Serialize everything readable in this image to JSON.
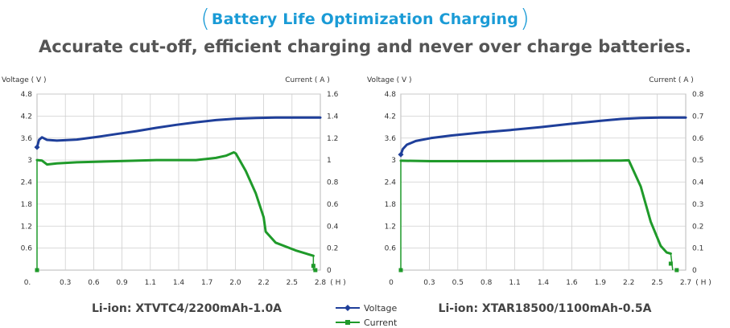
{
  "header": {
    "title": "Battery Life Optimization Charging",
    "subtitle": "Accurate cut-off, efficient charging and never over charge batteries."
  },
  "legend": {
    "voltage_label": "Voltage",
    "current_label": "Current",
    "voltage_color": "#1f3f9a",
    "current_color": "#1f9a2a"
  },
  "chart_data": [
    {
      "type": "line",
      "caption": "Li-ion: XTVTC4/2200mAh-1.0A",
      "ylabel": "Voltage ( V )",
      "y2label": "Current ( A )",
      "xunit": "( H )",
      "xlim": [
        0,
        2.85
      ],
      "ylim": [
        0,
        4.8
      ],
      "y2lim": [
        0,
        1.6
      ],
      "xticks": [
        "0.",
        "0.3",
        "0.6",
        "0.9",
        "1.1",
        "1.4",
        "1.7",
        "2.0",
        "2.2",
        "2.5",
        "2.8"
      ],
      "yticks": [
        "0.6",
        "1.2",
        "1.8",
        "2.4",
        "3",
        "3.6",
        "4.2",
        "4.8"
      ],
      "y2ticks": [
        "0",
        "0.2",
        "0.4",
        "0.6",
        "0.8",
        "1",
        "1.2",
        "1.4",
        "1.6"
      ],
      "grid": true,
      "series": [
        {
          "name": "Voltage",
          "axis": "left",
          "x": [
            0.0,
            0.02,
            0.05,
            0.1,
            0.2,
            0.4,
            0.6,
            0.8,
            1.0,
            1.2,
            1.4,
            1.6,
            1.8,
            2.0,
            2.2,
            2.4,
            2.6,
            2.85
          ],
          "y": [
            3.35,
            3.55,
            3.62,
            3.55,
            3.53,
            3.56,
            3.63,
            3.71,
            3.79,
            3.88,
            3.96,
            4.03,
            4.09,
            4.13,
            4.15,
            4.16,
            4.16,
            4.16
          ]
        },
        {
          "name": "Current",
          "axis": "right",
          "x": [
            0.0,
            0.05,
            0.1,
            0.2,
            0.4,
            0.8,
            1.2,
            1.6,
            1.8,
            1.9,
            1.98,
            2.0,
            2.1,
            2.2,
            2.28,
            2.3,
            2.4,
            2.6,
            2.78
          ],
          "y": [
            1.0,
            0.995,
            0.96,
            0.97,
            0.98,
            0.99,
            1.0,
            1.0,
            1.02,
            1.04,
            1.07,
            1.06,
            0.9,
            0.7,
            0.48,
            0.35,
            0.25,
            0.18,
            0.13
          ],
          "tail_x": [
            2.78,
            2.8
          ],
          "tail_y": [
            0.0,
            0.0
          ],
          "start_marker_x": 0.0,
          "start_marker_y": 0.0
        }
      ]
    },
    {
      "type": "line",
      "caption": "Li-ion: XTAR18500/1100mAh-0.5A",
      "ylabel": "Voltage ( V )",
      "y2label": "Current ( A )",
      "xunit": "( H )",
      "xlim": [
        0,
        2.85
      ],
      "ylim": [
        0,
        4.8
      ],
      "y2lim": [
        0,
        0.8
      ],
      "xticks": [
        "0",
        "0.3",
        "0.5",
        "0.8",
        "1.1",
        "1.4",
        "1.6",
        "1.9",
        "2.2",
        "2.5",
        "2.7"
      ],
      "yticks": [
        "0.6",
        "1.2",
        "1.8",
        "2.4",
        "3",
        "3.6",
        "4.2",
        "4.8"
      ],
      "y2ticks": [
        "0",
        "0.1",
        "0.2",
        "0.3",
        "0.4",
        "0.5",
        "0.6",
        "0.7",
        "0.8"
      ],
      "grid": true,
      "series": [
        {
          "name": "Voltage",
          "axis": "left",
          "x": [
            0.0,
            0.02,
            0.06,
            0.15,
            0.3,
            0.5,
            0.8,
            1.1,
            1.4,
            1.7,
            2.0,
            2.2,
            2.4,
            2.6,
            2.85
          ],
          "y": [
            3.15,
            3.3,
            3.42,
            3.52,
            3.6,
            3.67,
            3.75,
            3.82,
            3.9,
            3.99,
            4.07,
            4.12,
            4.15,
            4.16,
            4.16
          ]
        },
        {
          "name": "Current",
          "axis": "right",
          "x": [
            0.0,
            0.3,
            0.8,
            1.4,
            1.9,
            2.2,
            2.28,
            2.4,
            2.5,
            2.6,
            2.66,
            2.7
          ],
          "y": [
            0.497,
            0.495,
            0.495,
            0.496,
            0.497,
            0.498,
            0.499,
            0.38,
            0.22,
            0.11,
            0.08,
            0.075
          ],
          "tail_x": [
            2.72,
            2.76
          ],
          "tail_y": [
            0.0,
            0.0
          ],
          "start_marker_x": 0.0,
          "start_marker_y": 0.0
        }
      ]
    }
  ]
}
